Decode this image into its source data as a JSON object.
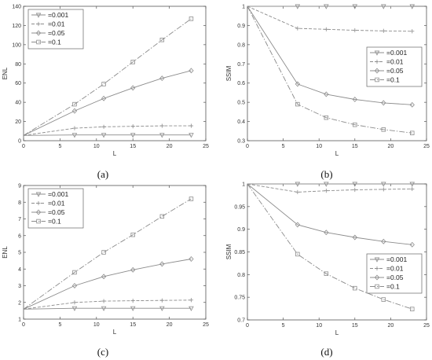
{
  "chart_data": [
    {
      "type": "line",
      "panel_label": "(a)",
      "xlabel": "L",
      "ylabel": "ENL",
      "xlim": [
        0,
        25
      ],
      "ylim": [
        0,
        140
      ],
      "xticks": [
        "0",
        "5",
        "10",
        "15",
        "20",
        "25"
      ],
      "yticks": [
        "0",
        "20",
        "40",
        "60",
        "80",
        "100",
        "120",
        "140"
      ],
      "legend_position": "top-left",
      "x": [
        0,
        7,
        11,
        15,
        19,
        23
      ],
      "series": [
        {
          "name": "=0.001",
          "marker": "triangle-down",
          "dash": "solid",
          "values": [
            5.5,
            6,
            6,
            6,
            6,
            6
          ]
        },
        {
          "name": "=0.01",
          "marker": "plus",
          "dash": "dashed",
          "values": [
            5.5,
            13,
            14.5,
            15,
            15.5,
            15.5
          ]
        },
        {
          "name": "=0.05",
          "marker": "diamond",
          "dash": "solid",
          "values": [
            5.5,
            31,
            44,
            55,
            65,
            73
          ]
        },
        {
          "name": "=0.1",
          "marker": "square",
          "dash": "dashdot",
          "values": [
            5.5,
            38,
            59,
            82,
            105,
            127
          ]
        }
      ]
    },
    {
      "type": "line",
      "panel_label": "(b)",
      "xlabel": "L",
      "ylabel": "SSIM",
      "xlim": [
        0,
        25
      ],
      "ylim": [
        0.3,
        1
      ],
      "xticks": [
        "0",
        "5",
        "10",
        "15",
        "20",
        "25"
      ],
      "yticks": [
        "0.3",
        "0.4",
        "0.5",
        "0.6",
        "0.7",
        "0.8",
        "0.9",
        "1"
      ],
      "legend_position": "right",
      "x": [
        0,
        7,
        11,
        15,
        19,
        23
      ],
      "series": [
        {
          "name": "=0.001",
          "marker": "triangle-down",
          "dash": "solid",
          "values": [
            1,
            1,
            1,
            1,
            1,
            1
          ]
        },
        {
          "name": "=0.01",
          "marker": "plus",
          "dash": "dashed",
          "values": [
            1,
            0.885,
            0.88,
            0.875,
            0.872,
            0.87
          ]
        },
        {
          "name": "=0.05",
          "marker": "diamond",
          "dash": "solid",
          "values": [
            1,
            0.595,
            0.542,
            0.515,
            0.497,
            0.487
          ]
        },
        {
          "name": "=0.1",
          "marker": "square",
          "dash": "dashdot",
          "values": [
            1,
            0.49,
            0.42,
            0.383,
            0.358,
            0.34
          ]
        }
      ]
    },
    {
      "type": "line",
      "panel_label": "(c)",
      "xlabel": "L",
      "ylabel": "ENL",
      "xlim": [
        0,
        25
      ],
      "ylim": [
        1,
        9
      ],
      "xticks": [
        "0",
        "5",
        "10",
        "15",
        "20",
        "25"
      ],
      "yticks": [
        "1",
        "2",
        "3",
        "4",
        "5",
        "6",
        "7",
        "8",
        "9"
      ],
      "legend_position": "top-left",
      "x": [
        0,
        7,
        11,
        15,
        19,
        23
      ],
      "series": [
        {
          "name": "=0.001",
          "marker": "triangle-down",
          "dash": "solid",
          "values": [
            1.6,
            1.65,
            1.65,
            1.65,
            1.65,
            1.65
          ]
        },
        {
          "name": "=0.01",
          "marker": "plus",
          "dash": "dashed",
          "values": [
            1.6,
            2.0,
            2.08,
            2.1,
            2.12,
            2.14
          ]
        },
        {
          "name": "=0.05",
          "marker": "diamond",
          "dash": "solid",
          "values": [
            1.6,
            3.0,
            3.55,
            3.95,
            4.3,
            4.6
          ]
        },
        {
          "name": "=0.1",
          "marker": "square",
          "dash": "dashdot",
          "values": [
            1.6,
            3.8,
            5.0,
            6.05,
            7.15,
            8.2
          ]
        }
      ]
    },
    {
      "type": "line",
      "panel_label": "(d)",
      "xlabel": "L",
      "ylabel": "SSIM",
      "xlim": [
        0,
        25
      ],
      "ylim": [
        0.7,
        1
      ],
      "xticks": [
        "0",
        "5",
        "10",
        "15",
        "20",
        "25"
      ],
      "yticks": [
        "0.7",
        "0.75",
        "0.8",
        "0.85",
        "0.9",
        "0.95",
        "1"
      ],
      "legend_position": "bottom-right",
      "x": [
        0,
        7,
        11,
        15,
        19,
        23
      ],
      "series": [
        {
          "name": "=0.001",
          "marker": "triangle-down",
          "dash": "solid",
          "values": [
            1,
            1,
            1,
            1,
            1,
            1
          ]
        },
        {
          "name": "=0.01",
          "marker": "plus",
          "dash": "dashed",
          "values": [
            1,
            0.982,
            0.985,
            0.987,
            0.988,
            0.989
          ]
        },
        {
          "name": "=0.05",
          "marker": "diamond",
          "dash": "solid",
          "values": [
            1,
            0.91,
            0.893,
            0.882,
            0.873,
            0.866
          ]
        },
        {
          "name": "=0.1",
          "marker": "square",
          "dash": "dashdot",
          "values": [
            1,
            0.845,
            0.802,
            0.77,
            0.745,
            0.724
          ]
        }
      ]
    }
  ]
}
